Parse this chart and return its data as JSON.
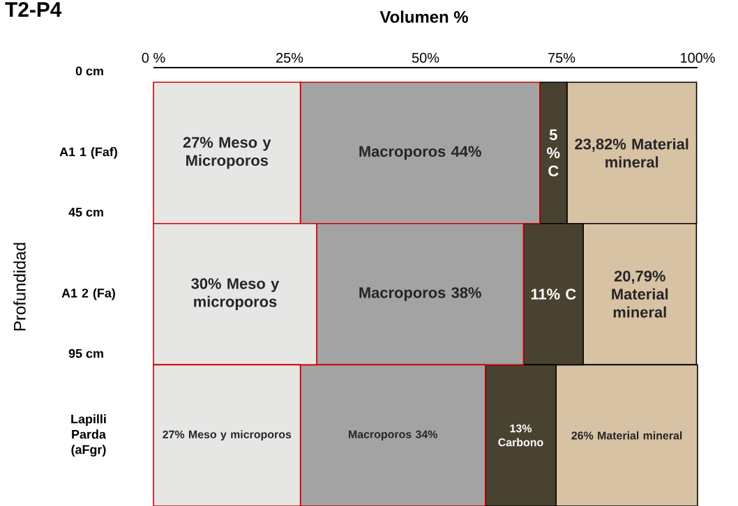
{
  "chart_data": {
    "type": "bar",
    "orientation": "horizontal",
    "stacked": true,
    "title": "T2-P4",
    "xlabel": "Volumen %",
    "ylabel": "Profundidad",
    "categories": [
      "A1 1 (Faf)",
      "A1 2 (Fa)",
      "Lapilli Parda (aFgr)"
    ],
    "xlim": [
      0,
      100
    ],
    "xticks": [
      {
        "value": 0,
        "label": "0 %"
      },
      {
        "value": 25,
        "label": "25%"
      },
      {
        "value": 50,
        "label": "50%"
      },
      {
        "value": 75,
        "label": "75%"
      },
      {
        "value": 100,
        "label": "100%"
      }
    ],
    "series": [
      {
        "color": "#e6e6e4",
        "values": [
          27,
          30,
          27
        ],
        "value_labels": [
          "27% Meso y Microporos",
          "30% Meso y microporos",
          "27% Meso y microporos"
        ]
      },
      {
        "color": "#a3a3a3",
        "values": [
          44,
          38,
          34
        ],
        "value_labels": [
          "Macroporos 44%",
          "Macroporos 38%",
          "Macroporos 34%"
        ]
      },
      {
        "color": "#4a4230",
        "values": [
          5,
          11,
          13
        ],
        "value_labels": [
          "5 % C",
          "11% C",
          "13% Carbono"
        ]
      },
      {
        "color": "#d8c2a4",
        "values": [
          23.82,
          20.79,
          26
        ],
        "value_labels": [
          "23,82% Material mineral",
          "20,79% Material mineral",
          "26% Material mineral"
        ]
      }
    ],
    "annotations": [
      "0 cm",
      "45 cm",
      "95 cm"
    ]
  }
}
